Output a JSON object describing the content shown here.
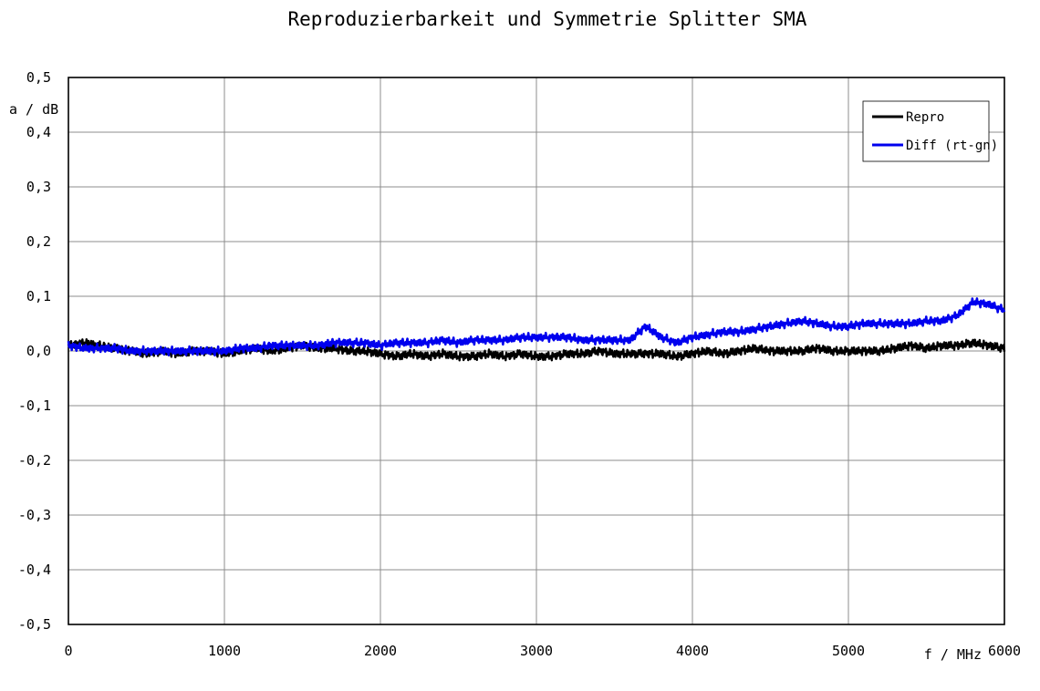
{
  "chart_data": {
    "type": "line",
    "title": "Reproduzierbarkeit und Symmetrie Splitter SMA",
    "xlabel": "f / MHz",
    "ylabel": "a / dB",
    "xlim": [
      0,
      6000
    ],
    "ylim": [
      -0.5,
      0.5
    ],
    "x_ticks": [
      0,
      1000,
      2000,
      3000,
      4000,
      5000,
      6000
    ],
    "x_tick_labels": [
      "0",
      "1000",
      "2000",
      "3000",
      "4000",
      "5000",
      "6000"
    ],
    "y_ticks": [
      0.5,
      0.4,
      0.3,
      0.2,
      0.1,
      0.0,
      -0.1,
      -0.2,
      -0.3,
      -0.4,
      -0.5
    ],
    "y_tick_labels": [
      "0,5",
      "0,4",
      "0,3",
      "0,2",
      "0,1",
      "0,0",
      "-0,1",
      "-0,2",
      "-0,3",
      "-0,4",
      "-0,5"
    ],
    "grid": true,
    "legend_position": "top-right",
    "series": [
      {
        "name": "Repro",
        "color": "#000000",
        "x": [
          0,
          100,
          200,
          300,
          400,
          500,
          600,
          700,
          800,
          900,
          1000,
          1100,
          1200,
          1300,
          1400,
          1500,
          1600,
          1700,
          1800,
          1900,
          2000,
          2100,
          2200,
          2300,
          2400,
          2500,
          2600,
          2700,
          2800,
          2900,
          3000,
          3100,
          3200,
          3300,
          3400,
          3500,
          3600,
          3700,
          3800,
          3900,
          4000,
          4100,
          4200,
          4300,
          4400,
          4500,
          4600,
          4700,
          4800,
          4900,
          5000,
          5100,
          5200,
          5300,
          5400,
          5500,
          5600,
          5700,
          5800,
          5900,
          6000
        ],
        "y": [
          0.01,
          0.015,
          0.01,
          0.005,
          0.0,
          -0.005,
          0.0,
          -0.005,
          0.0,
          0.0,
          -0.005,
          0.0,
          0.005,
          0.0,
          0.005,
          0.01,
          0.005,
          0.005,
          0.0,
          0.0,
          -0.005,
          -0.01,
          -0.005,
          -0.01,
          -0.005,
          -0.01,
          -0.01,
          -0.005,
          -0.01,
          -0.005,
          -0.01,
          -0.01,
          -0.005,
          -0.005,
          0.0,
          -0.005,
          -0.005,
          -0.005,
          -0.005,
          -0.01,
          -0.005,
          0.0,
          -0.005,
          0.0,
          0.005,
          0.0,
          0.0,
          0.0,
          0.005,
          0.0,
          0.0,
          0.0,
          0.0,
          0.005,
          0.01,
          0.005,
          0.01,
          0.01,
          0.015,
          0.01,
          0.005
        ]
      },
      {
        "name": "Diff (rt-gn)",
        "color": "#0000ee",
        "x": [
          0,
          100,
          200,
          300,
          400,
          500,
          600,
          700,
          800,
          900,
          1000,
          1100,
          1200,
          1300,
          1400,
          1500,
          1600,
          1700,
          1800,
          1900,
          2000,
          2100,
          2200,
          2300,
          2400,
          2500,
          2600,
          2700,
          2800,
          2900,
          3000,
          3100,
          3200,
          3300,
          3400,
          3500,
          3600,
          3700,
          3800,
          3900,
          4000,
          4100,
          4200,
          4300,
          4400,
          4500,
          4600,
          4700,
          4800,
          4900,
          5000,
          5100,
          5200,
          5300,
          5400,
          5500,
          5600,
          5700,
          5800,
          5900,
          6000
        ],
        "y": [
          0.01,
          0.005,
          0.005,
          0.005,
          0.0,
          0.0,
          0.0,
          0.0,
          0.0,
          0.0,
          0.0,
          0.005,
          0.005,
          0.01,
          0.01,
          0.01,
          0.01,
          0.015,
          0.015,
          0.015,
          0.01,
          0.015,
          0.015,
          0.015,
          0.02,
          0.015,
          0.02,
          0.02,
          0.02,
          0.025,
          0.025,
          0.025,
          0.025,
          0.02,
          0.02,
          0.02,
          0.02,
          0.045,
          0.025,
          0.015,
          0.025,
          0.03,
          0.035,
          0.035,
          0.04,
          0.045,
          0.05,
          0.055,
          0.05,
          0.045,
          0.045,
          0.05,
          0.05,
          0.05,
          0.05,
          0.055,
          0.055,
          0.065,
          0.09,
          0.085,
          0.075
        ]
      }
    ]
  }
}
